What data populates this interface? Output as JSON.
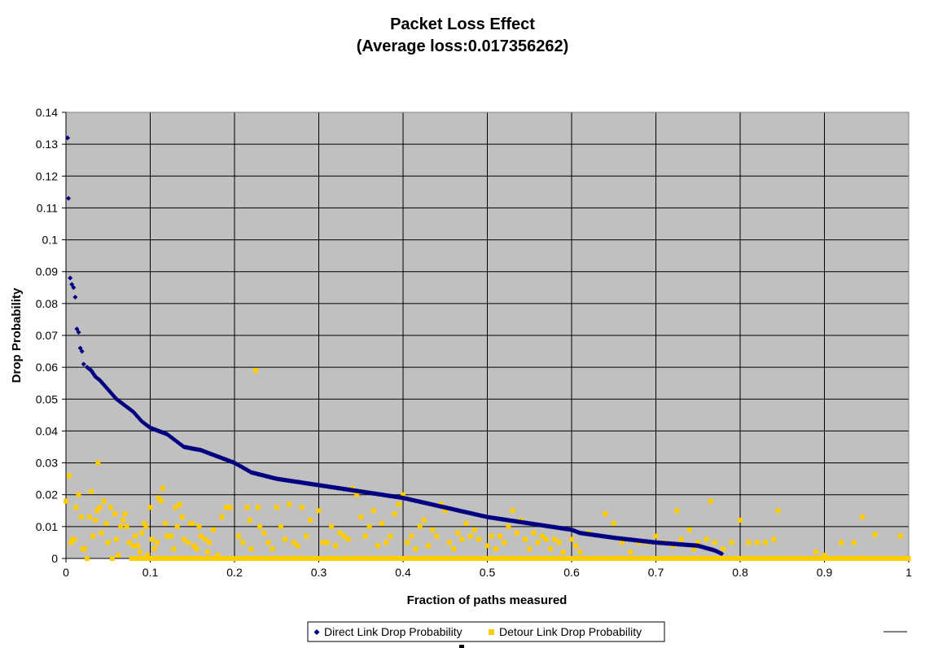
{
  "chart_data": {
    "type": "scatter",
    "title": "Packet Loss Effect",
    "subtitle": "(Average loss:0.017356262)",
    "xlabel": "Fraction of paths measured",
    "ylabel": "Drop Probability",
    "xlim": [
      0,
      1
    ],
    "ylim": [
      0,
      0.14
    ],
    "x_ticks": [
      "0",
      "0.1",
      "0.2",
      "0.3",
      "0.4",
      "0.5",
      "0.6",
      "0.7",
      "0.8",
      "0.9",
      "1"
    ],
    "y_ticks": [
      "0",
      "0.01",
      "0.02",
      "0.03",
      "0.04",
      "0.05",
      "0.06",
      "0.07",
      "0.08",
      "0.09",
      "0.1",
      "0.11",
      "0.12",
      "0.13",
      "0.14"
    ],
    "grid": true,
    "plot_background": "#c0c0c0",
    "legend_position": "bottom",
    "series": [
      {
        "name": "Direct Link Drop Probability",
        "marker": "diamond",
        "color": "#000080",
        "curve": [
          [
            0.002,
            0.132
          ],
          [
            0.003,
            0.113
          ],
          [
            0.005,
            0.088
          ],
          [
            0.007,
            0.086
          ],
          [
            0.009,
            0.085
          ],
          [
            0.011,
            0.082
          ],
          [
            0.013,
            0.072
          ],
          [
            0.015,
            0.071
          ],
          [
            0.017,
            0.066
          ],
          [
            0.019,
            0.065
          ],
          [
            0.021,
            0.061
          ],
          [
            0.025,
            0.06
          ],
          [
            0.03,
            0.059
          ],
          [
            0.035,
            0.057
          ],
          [
            0.04,
            0.056
          ],
          [
            0.05,
            0.053
          ],
          [
            0.06,
            0.05
          ],
          [
            0.07,
            0.048
          ],
          [
            0.08,
            0.046
          ],
          [
            0.09,
            0.043
          ],
          [
            0.1,
            0.041
          ],
          [
            0.12,
            0.039
          ],
          [
            0.14,
            0.035
          ],
          [
            0.16,
            0.034
          ],
          [
            0.18,
            0.032
          ],
          [
            0.2,
            0.03
          ],
          [
            0.22,
            0.027
          ],
          [
            0.25,
            0.025
          ],
          [
            0.3,
            0.023
          ],
          [
            0.35,
            0.021
          ],
          [
            0.4,
            0.019
          ],
          [
            0.45,
            0.016
          ],
          [
            0.5,
            0.013
          ],
          [
            0.55,
            0.011
          ],
          [
            0.6,
            0.009
          ],
          [
            0.61,
            0.008
          ],
          [
            0.65,
            0.0065
          ],
          [
            0.7,
            0.005
          ],
          [
            0.75,
            0.004
          ],
          [
            0.77,
            0.0025
          ],
          [
            0.778,
            0.0015
          ]
        ]
      },
      {
        "name": "Detour Link Drop Probability",
        "marker": "square",
        "color": "#ffcc00",
        "baseline": {
          "x_from": 0.08,
          "x_to": 1.0,
          "y": 0
        },
        "points": [
          [
            0.0,
            0.018
          ],
          [
            0.004,
            0.026
          ],
          [
            0.006,
            0.005
          ],
          [
            0.008,
            0.006
          ],
          [
            0.01,
            0.006
          ],
          [
            0.012,
            0.016
          ],
          [
            0.015,
            0.02
          ],
          [
            0.018,
            0.013
          ],
          [
            0.02,
            0.003
          ],
          [
            0.022,
            0.003
          ],
          [
            0.025,
            0.0
          ],
          [
            0.028,
            0.013
          ],
          [
            0.03,
            0.021
          ],
          [
            0.032,
            0.007
          ],
          [
            0.035,
            0.012
          ],
          [
            0.037,
            0.015
          ],
          [
            0.038,
            0.03
          ],
          [
            0.04,
            0.016
          ],
          [
            0.042,
            0.008
          ],
          [
            0.045,
            0.018
          ],
          [
            0.048,
            0.011
          ],
          [
            0.05,
            0.005
          ],
          [
            0.053,
            0.016
          ],
          [
            0.055,
            0.0
          ],
          [
            0.058,
            0.014
          ],
          [
            0.06,
            0.006
          ],
          [
            0.062,
            0.001
          ],
          [
            0.065,
            0.01
          ],
          [
            0.068,
            0.012
          ],
          [
            0.07,
            0.014
          ],
          [
            0.072,
            0.01
          ],
          [
            0.075,
            0.005
          ],
          [
            0.078,
            0.0
          ],
          [
            0.08,
            0.004
          ],
          [
            0.082,
            0.007
          ],
          [
            0.085,
            0.004
          ],
          [
            0.088,
            0.002
          ],
          [
            0.09,
            0.008
          ],
          [
            0.093,
            0.011
          ],
          [
            0.095,
            0.01
          ],
          [
            0.097,
            0.001
          ],
          [
            0.1,
            0.016
          ],
          [
            0.102,
            0.006
          ],
          [
            0.105,
            0.003
          ],
          [
            0.108,
            0.005
          ],
          [
            0.11,
            0.019
          ],
          [
            0.113,
            0.018
          ],
          [
            0.115,
            0.022
          ],
          [
            0.118,
            0.011
          ],
          [
            0.12,
            0.007
          ],
          [
            0.125,
            0.007
          ],
          [
            0.128,
            0.003
          ],
          [
            0.13,
            0.016
          ],
          [
            0.132,
            0.01
          ],
          [
            0.135,
            0.017
          ],
          [
            0.138,
            0.013
          ],
          [
            0.14,
            0.006
          ],
          [
            0.145,
            0.005
          ],
          [
            0.148,
            0.011
          ],
          [
            0.15,
            0.011
          ],
          [
            0.152,
            0.004
          ],
          [
            0.155,
            0.003
          ],
          [
            0.158,
            0.01
          ],
          [
            0.16,
            0.007
          ],
          [
            0.165,
            0.006
          ],
          [
            0.168,
            0.002
          ],
          [
            0.17,
            0.005
          ],
          [
            0.175,
            0.009
          ],
          [
            0.18,
            0.001
          ],
          [
            0.185,
            0.013
          ],
          [
            0.19,
            0.016
          ],
          [
            0.195,
            0.016
          ],
          [
            0.2,
            0.0
          ],
          [
            0.205,
            0.007
          ],
          [
            0.21,
            0.005
          ],
          [
            0.215,
            0.016
          ],
          [
            0.218,
            0.012
          ],
          [
            0.22,
            0.003
          ],
          [
            0.225,
            0.059
          ],
          [
            0.228,
            0.016
          ],
          [
            0.23,
            0.01
          ],
          [
            0.235,
            0.008
          ],
          [
            0.24,
            0.005
          ],
          [
            0.245,
            0.003
          ],
          [
            0.25,
            0.016
          ],
          [
            0.255,
            0.01
          ],
          [
            0.26,
            0.006
          ],
          [
            0.265,
            0.017
          ],
          [
            0.27,
            0.005
          ],
          [
            0.275,
            0.004
          ],
          [
            0.28,
            0.016
          ],
          [
            0.285,
            0.007
          ],
          [
            0.29,
            0.012
          ],
          [
            0.3,
            0.015
          ],
          [
            0.305,
            0.005
          ],
          [
            0.31,
            0.005
          ],
          [
            0.315,
            0.01
          ],
          [
            0.32,
            0.004
          ],
          [
            0.325,
            0.008
          ],
          [
            0.33,
            0.007
          ],
          [
            0.335,
            0.006
          ],
          [
            0.34,
            0.022
          ],
          [
            0.345,
            0.02
          ],
          [
            0.35,
            0.013
          ],
          [
            0.355,
            0.007
          ],
          [
            0.36,
            0.01
          ],
          [
            0.365,
            0.015
          ],
          [
            0.37,
            0.004
          ],
          [
            0.375,
            0.011
          ],
          [
            0.38,
            0.005
          ],
          [
            0.385,
            0.007
          ],
          [
            0.39,
            0.014
          ],
          [
            0.395,
            0.017
          ],
          [
            0.4,
            0.02
          ],
          [
            0.405,
            0.005
          ],
          [
            0.41,
            0.007
          ],
          [
            0.415,
            0.003
          ],
          [
            0.42,
            0.01
          ],
          [
            0.425,
            0.012
          ],
          [
            0.43,
            0.004
          ],
          [
            0.435,
            0.009
          ],
          [
            0.44,
            0.007
          ],
          [
            0.445,
            0.017
          ],
          [
            0.45,
            0.015
          ],
          [
            0.455,
            0.005
          ],
          [
            0.46,
            0.003
          ],
          [
            0.465,
            0.008
          ],
          [
            0.47,
            0.006
          ],
          [
            0.475,
            0.011
          ],
          [
            0.48,
            0.007
          ],
          [
            0.485,
            0.009
          ],
          [
            0.49,
            0.006
          ],
          [
            0.5,
            0.004
          ],
          [
            0.505,
            0.007
          ],
          [
            0.51,
            0.003
          ],
          [
            0.515,
            0.007
          ],
          [
            0.52,
            0.005
          ],
          [
            0.525,
            0.01
          ],
          [
            0.53,
            0.015
          ],
          [
            0.535,
            0.008
          ],
          [
            0.54,
            0.012
          ],
          [
            0.545,
            0.006
          ],
          [
            0.55,
            0.003
          ],
          [
            0.555,
            0.008
          ],
          [
            0.56,
            0.005
          ],
          [
            0.565,
            0.007
          ],
          [
            0.57,
            0.006
          ],
          [
            0.575,
            0.003
          ],
          [
            0.58,
            0.006
          ],
          [
            0.585,
            0.005
          ],
          [
            0.59,
            0.002
          ],
          [
            0.6,
            0.006
          ],
          [
            0.605,
            0.004
          ],
          [
            0.61,
            0.002
          ],
          [
            0.62,
            0.008
          ],
          [
            0.64,
            0.014
          ],
          [
            0.65,
            0.011
          ],
          [
            0.66,
            0.005
          ],
          [
            0.67,
            0.002
          ],
          [
            0.68,
            0.005
          ],
          [
            0.69,
            0.005
          ],
          [
            0.7,
            0.007
          ],
          [
            0.71,
            0.005
          ],
          [
            0.72,
            0.004
          ],
          [
            0.725,
            0.015
          ],
          [
            0.73,
            0.006
          ],
          [
            0.74,
            0.009
          ],
          [
            0.745,
            0.003
          ],
          [
            0.75,
            0.005
          ],
          [
            0.76,
            0.006
          ],
          [
            0.765,
            0.018
          ],
          [
            0.77,
            0.005
          ],
          [
            0.78,
            0.003
          ],
          [
            0.79,
            0.005
          ],
          [
            0.8,
            0.012
          ],
          [
            0.81,
            0.005
          ],
          [
            0.82,
            0.005
          ],
          [
            0.83,
            0.005
          ],
          [
            0.84,
            0.006
          ],
          [
            0.845,
            0.015
          ],
          [
            0.89,
            0.002
          ],
          [
            0.9,
            0.001
          ],
          [
            0.92,
            0.005
          ],
          [
            0.935,
            0.005
          ],
          [
            0.945,
            0.013
          ],
          [
            0.96,
            0.0075
          ],
          [
            0.99,
            0.007
          ]
        ]
      }
    ]
  },
  "legend": {
    "items": [
      {
        "label": "Direct Link Drop Probability",
        "marker": "diamond",
        "color": "#000080"
      },
      {
        "label": "Detour Link Drop Probability",
        "marker": "square",
        "color": "#ffcc00"
      }
    ]
  }
}
